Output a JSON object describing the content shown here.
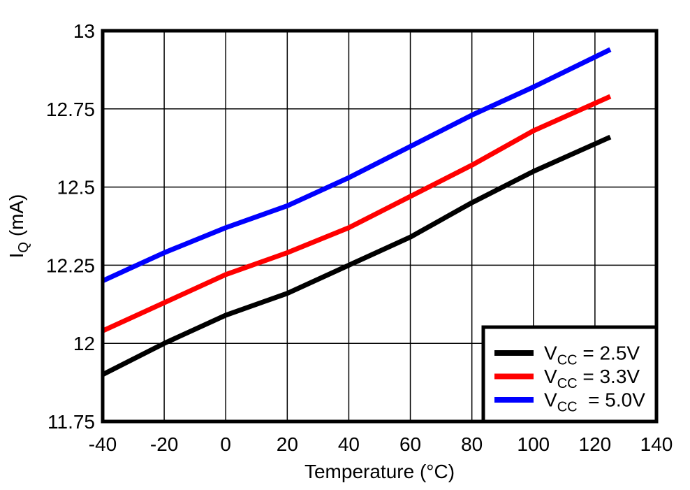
{
  "chart_data": {
    "type": "line",
    "title": "",
    "xlabel": "Temperature (°C)",
    "ylabel": {
      "prefix": "I",
      "sub": "Q",
      "suffix": " (mA)"
    },
    "xlim": [
      -40,
      140
    ],
    "ylim": [
      11.75,
      13
    ],
    "grid": true,
    "legend_position": "bottom-right",
    "x_ticks": [
      {
        "value": -40,
        "label": "-40"
      },
      {
        "value": -20,
        "label": "-20"
      },
      {
        "value": 0,
        "label": "0"
      },
      {
        "value": 20,
        "label": "20"
      },
      {
        "value": 40,
        "label": "40"
      },
      {
        "value": 60,
        "label": "60"
      },
      {
        "value": 80,
        "label": "80"
      },
      {
        "value": 100,
        "label": "100"
      },
      {
        "value": 120,
        "label": "120"
      },
      {
        "value": 140,
        "label": "140"
      }
    ],
    "y_ticks": [
      {
        "value": 11.75,
        "label": "11.75"
      },
      {
        "value": 12,
        "label": "12"
      },
      {
        "value": 12.25,
        "label": "12.25"
      },
      {
        "value": 12.5,
        "label": "12.5"
      },
      {
        "value": 12.75,
        "label": "12.75"
      },
      {
        "value": 13,
        "label": "13"
      }
    ],
    "x": [
      -40,
      -20,
      0,
      20,
      40,
      60,
      80,
      100,
      125
    ],
    "series": [
      {
        "id": "vcc-2v5",
        "name": "VCC = 2.5V",
        "color": "#000000",
        "legend": {
          "prefix": "V",
          "sub": "CC",
          "suffix": " = 2.5V"
        },
        "values": [
          11.9,
          12.0,
          12.09,
          12.16,
          12.25,
          12.34,
          12.45,
          12.55,
          12.66
        ]
      },
      {
        "id": "vcc-3v3",
        "name": "VCC = 3.3V",
        "color": "#FF0000",
        "legend": {
          "prefix": "V",
          "sub": "CC",
          "suffix": " = 3.3V"
        },
        "values": [
          12.04,
          12.13,
          12.22,
          12.29,
          12.37,
          12.47,
          12.57,
          12.68,
          12.79
        ]
      },
      {
        "id": "vcc-5v0",
        "name": "VCC = 5.0V",
        "color": "#0000FF",
        "legend": {
          "prefix": "V",
          "sub": "CC",
          "suffix": "  = 5.0V"
        },
        "values": [
          12.2,
          12.29,
          12.37,
          12.44,
          12.53,
          12.63,
          12.73,
          12.82,
          12.94
        ]
      }
    ]
  }
}
